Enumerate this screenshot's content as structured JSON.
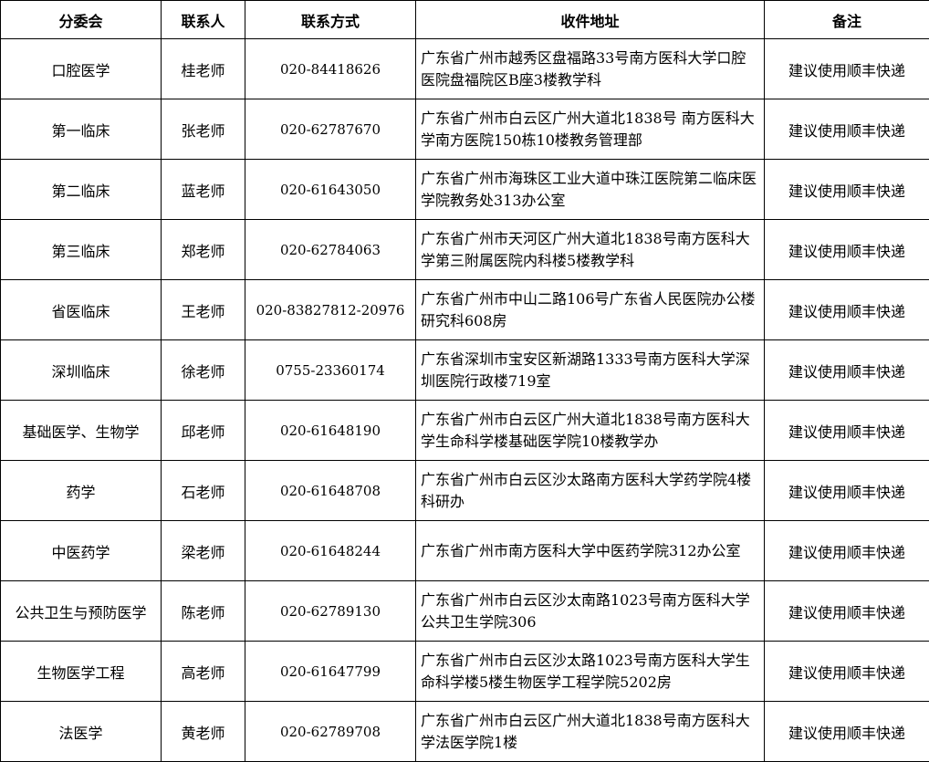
{
  "headers": [
    "分委会",
    "联系人",
    "联系方式",
    "收件地址",
    "备注"
  ],
  "rows": [
    {
      "committee": "口腔医学",
      "contact": "桂老师",
      "phone": "020-84418626",
      "address": "广东省广州市越秀区盘福路33号南方医科大学口腔医院盘福院区B座3楼教学科",
      "note": "建议使用顺丰快递"
    },
    {
      "committee": "第一临床",
      "contact": "张老师",
      "phone": "020-62787670",
      "address": "广东省广州市白云区广州大道北1838号 南方医科大学南方医院150栋10楼教务管理部",
      "note": "建议使用顺丰快递"
    },
    {
      "committee": "第二临床",
      "contact": "蓝老师",
      "phone": "020-61643050",
      "address": "广东省广州市海珠区工业大道中珠江医院第二临床医学院教务处313办公室",
      "note": "建议使用顺丰快递"
    },
    {
      "committee": "第三临床",
      "contact": "郑老师",
      "phone": "020-62784063",
      "address": "广东省广州市天河区广州大道北1838号南方医科大学第三附属医院内科楼5楼教学科",
      "note": "建议使用顺丰快递"
    },
    {
      "committee": "省医临床",
      "contact": "王老师",
      "phone": "020-83827812-20976",
      "address": "广东省广州市中山二路106号广东省人民医院办公楼研究科608房",
      "note": "建议使用顺丰快递"
    },
    {
      "committee": "深圳临床",
      "contact": "徐老师",
      "phone": "0755-23360174",
      "address": "广东省深圳市宝安区新湖路1333号南方医科大学深圳医院行政楼719室",
      "note": "建议使用顺丰快递"
    },
    {
      "committee": "基础医学、生物学",
      "contact": "邱老师",
      "phone": "020-61648190",
      "address": "广东省广州市白云区广州大道北1838号南方医科大学生命科学楼基础医学院10楼教学办",
      "note": "建议使用顺丰快递"
    },
    {
      "committee": "药学",
      "contact": "石老师",
      "phone": "020-61648708",
      "address": "广东省广州市白云区沙太路南方医科大学药学院4楼科研办",
      "note": "建议使用顺丰快递"
    },
    {
      "committee": "中医药学",
      "contact": "梁老师",
      "phone": "020-61648244",
      "address": "广东省广州市南方医科大学中医药学院312办公室",
      "note": "建议使用顺丰快递"
    },
    {
      "committee": "公共卫生与预防医学",
      "contact": "陈老师",
      "phone": "020-62789130",
      "address": "广东省广州市白云区沙太南路1023号南方医科大学公共卫生学院306",
      "note": "建议使用顺丰快递"
    },
    {
      "committee": "生物医学工程",
      "contact": "高老师",
      "phone": "020-61647799",
      "address": "广东省广州市白云区沙太路1023号南方医科大学生命科学楼5楼生物医学工程学院5202房",
      "note": "建议使用顺丰快递"
    },
    {
      "committee": "法医学",
      "contact": "黄老师",
      "phone": "020-62789708",
      "address": "广东省广州市白云区广州大道北1838号南方医科大学法医学院1楼",
      "note": "建议使用顺丰快递"
    }
  ]
}
